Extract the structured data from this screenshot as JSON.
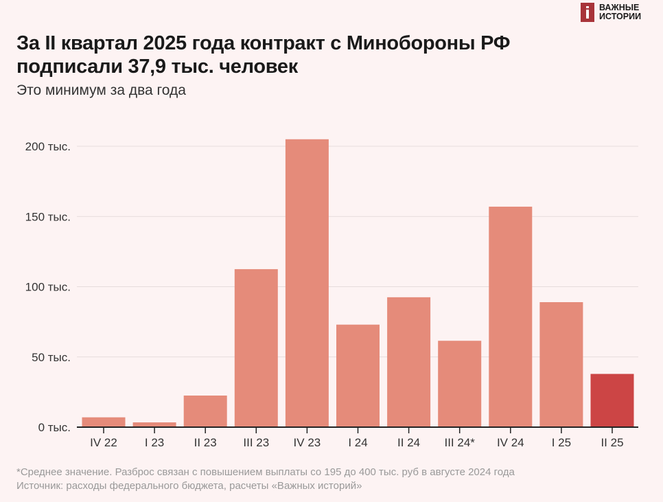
{
  "logo": {
    "line1": "ВАЖНЫЕ",
    "line2": "ИСТОРИИ"
  },
  "header": {
    "title_line1": "За II квартал 2025 года контракт с Минобороны РФ",
    "title_line2": "подписали 37,9 тыс. человек",
    "subtitle": "Это минимум за два года"
  },
  "chart_data": {
    "type": "bar",
    "title": "За II квартал 2025 года контракт с Минобороны РФ подписали 37,9 тыс. человек",
    "subtitle": "Это минимум за два года",
    "categories": [
      "IV 22",
      "I 23",
      "II 23",
      "III 23",
      "IV 23",
      "I 24",
      "II 24",
      "III 24*",
      "IV 24",
      "I 25",
      "II 25"
    ],
    "values": [
      7,
      3.4,
      22.5,
      112.5,
      205,
      73,
      92.5,
      61.5,
      157,
      89,
      37.9
    ],
    "unit": "тыс.",
    "yticks": [
      0,
      50,
      100,
      150,
      200
    ],
    "ytick_labels": [
      "0 тыс.",
      "50 тыс.",
      "100 тыс.",
      "150 тыс.",
      "200 тыс."
    ],
    "ylim": [
      0,
      210
    ],
    "grid": true,
    "highlight_index": 10,
    "colors": {
      "bar": "#e58b7a",
      "highlight": "#cc4545",
      "grid": "#e6dcdc",
      "axis": "#222222"
    }
  },
  "footer": {
    "note": "*Среднее значение. Разброс связан с повышением выплаты со 195 до 400 тыс. руб в августе 2024 года",
    "source": "Источник: расходы федерального бюджета, расчеты «Важных историй»"
  }
}
